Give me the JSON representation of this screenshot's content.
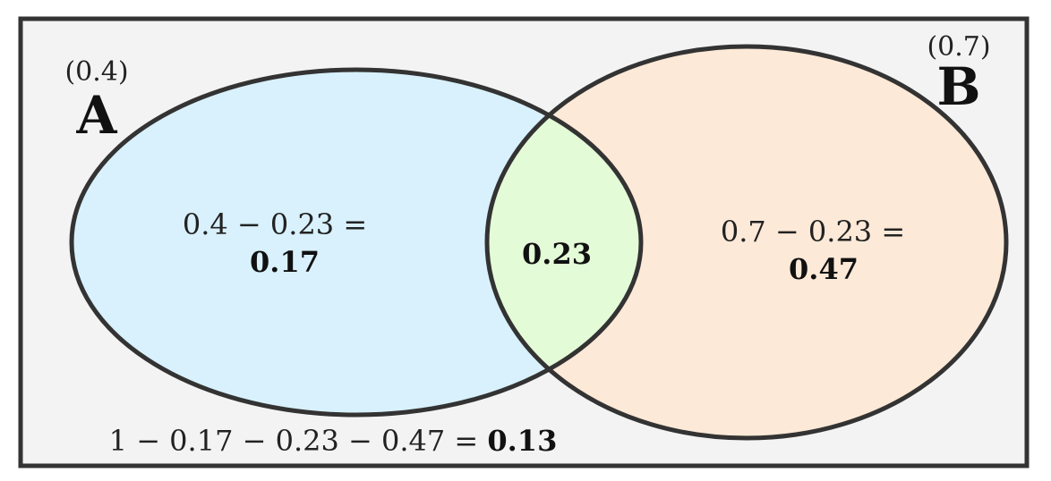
{
  "diagram": {
    "sets": {
      "a": {
        "name": "A",
        "probability": "(0.4)",
        "color": "#d8f1fc"
      },
      "b": {
        "name": "B",
        "probability": "(0.7)",
        "color": "#fde9d7"
      }
    },
    "regions": {
      "a_only": {
        "expression": "0.4 − 0.23 =",
        "result": "0.17"
      },
      "intersection": {
        "result": "0.23",
        "color": "#e4fbd7"
      },
      "b_only": {
        "expression": "0.7 − 0.23 =",
        "result": "0.47"
      },
      "outside": {
        "expression": "1 − 0.17 − 0.23 − 0.47 = ",
        "result": "0.13"
      }
    },
    "colors": {
      "background": "#f3f3f3",
      "outline": "#333333"
    }
  }
}
